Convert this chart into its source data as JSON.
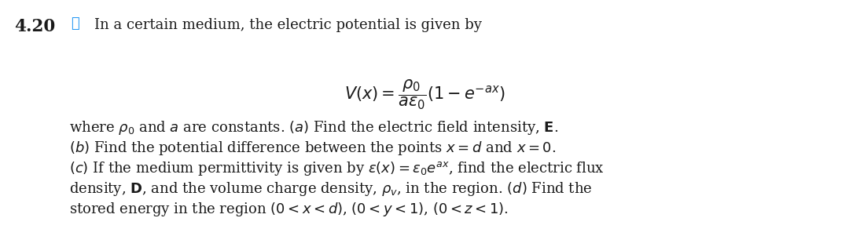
{
  "bg_color": "#ffffff",
  "text_color": "#1a1a1a",
  "problem_number": "4.20",
  "title_line": "In a certain medium, the electric potential is given by",
  "formula": "$V(x) = \\dfrac{\\rho_0}{a\\epsilon_0}(1 - e^{-ax})$",
  "line1": "where $\\rho_0$ and $a$ are constants. $(a)$ Find the electric field intensity, $\\mathbf{E}$.",
  "line2": "$(b)$ Find the potential difference between the points $x = d$ and $x = 0$.",
  "line3": "$(c)$ If the medium permittivity is given by $\\epsilon(x) = \\epsilon_0 e^{ax}$, find the electric flux",
  "line4": "density, $\\mathbf{D}$, and the volume charge density, $\\rho_v$, in the region. $(d)$ Find the",
  "line5": "stored energy in the region $(0 < x < d)$, $(0 < y < 1)$, $(0 < z < 1)$.",
  "body_fontsize": 13.0,
  "formula_fontsize": 15.0,
  "number_fontsize": 15.5,
  "icon_char": "🌡",
  "fig_width": 10.8,
  "fig_height": 3.15,
  "dpi": 100
}
